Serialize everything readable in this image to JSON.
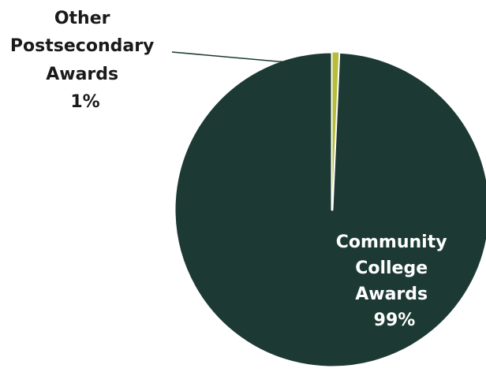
{
  "chart_data": {
    "type": "pie",
    "slices": [
      {
        "label_lines": [
          "Community",
          "College",
          "Awards"
        ],
        "percent_label": "99%",
        "value": 99.3,
        "color": "#1c3a33"
      },
      {
        "label_lines": [
          "Other",
          "Postsecondary",
          "Awards"
        ],
        "percent_label": "1%",
        "value": 0.7,
        "color": "#b5bd3a"
      }
    ],
    "legend": "none",
    "separator_color": "#ffffff",
    "leader_line_color": "#1c3a33"
  }
}
